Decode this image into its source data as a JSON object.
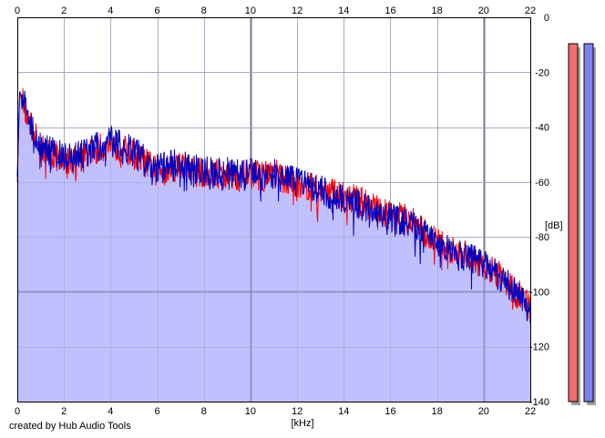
{
  "credit": "created by Hub Audio Tools",
  "chart_data": {
    "type": "line",
    "xlabel": "[kHz]",
    "ylabel": "[dB]",
    "xlim": [
      0,
      22
    ],
    "ylim": [
      -140,
      0
    ],
    "x_ticks": [
      0,
      2,
      4,
      6,
      8,
      10,
      12,
      14,
      16,
      18,
      20,
      22
    ],
    "y_ticks": [
      0,
      -20,
      -40,
      -60,
      -80,
      -100,
      -120,
      -140
    ],
    "grid": true,
    "fill_color": "#c0c0ff",
    "series": [
      {
        "color": "#ff0000",
        "x": [
          0,
          0.1,
          0.3,
          0.5,
          0.8,
          1,
          1.5,
          2,
          2.5,
          3,
          3.5,
          4,
          4.5,
          5,
          5.5,
          6,
          6.5,
          7,
          7.5,
          8,
          8.5,
          9,
          9.5,
          10,
          10.5,
          11,
          11.5,
          12,
          12.5,
          13,
          13.5,
          14,
          14.5,
          15,
          15.5,
          16,
          16.5,
          17,
          17.5,
          18,
          18.5,
          19,
          19.5,
          20,
          20.5,
          21,
          21.5,
          22
        ],
        "y": [
          -60,
          -28,
          -32,
          -38,
          -44,
          -48,
          -50,
          -52,
          -52,
          -50,
          -48,
          -46,
          -48,
          -50,
          -53,
          -56,
          -55,
          -54,
          -56,
          -57,
          -57,
          -57,
          -58,
          -57,
          -58,
          -57,
          -59,
          -60,
          -62,
          -63,
          -64,
          -65,
          -66,
          -68,
          -70,
          -72,
          -73,
          -75,
          -79,
          -82,
          -85,
          -86,
          -88,
          -90,
          -93,
          -97,
          -101,
          -106
        ]
      },
      {
        "color": "#0000c0",
        "x": [
          0,
          0.1,
          0.3,
          0.5,
          0.8,
          1,
          1.5,
          2,
          2.5,
          3,
          3.5,
          4,
          4.5,
          5,
          5.5,
          6,
          6.5,
          7,
          7.5,
          8,
          8.5,
          9,
          9.5,
          10,
          10.5,
          11,
          11.5,
          12,
          12.5,
          13,
          13.5,
          14,
          14.5,
          15,
          15.5,
          16,
          16.5,
          17,
          17.5,
          18,
          18.5,
          19,
          19.5,
          20,
          20.5,
          21,
          21.5,
          22
        ],
        "y": [
          -58,
          -27,
          -31,
          -37,
          -43,
          -47,
          -49,
          -51,
          -51,
          -49,
          -47,
          -45,
          -47,
          -49,
          -52,
          -55,
          -54,
          -53,
          -55,
          -56,
          -56,
          -56,
          -57,
          -57,
          -58,
          -57,
          -59,
          -60,
          -62,
          -63,
          -65,
          -66,
          -68,
          -69,
          -71,
          -73,
          -74,
          -76,
          -79,
          -82,
          -85,
          -87,
          -88,
          -90,
          -93,
          -97,
          -101,
          -108
        ]
      }
    ]
  },
  "meters": {
    "left_color": "#f07070",
    "right_color": "#8080f0",
    "level": 1.0
  }
}
